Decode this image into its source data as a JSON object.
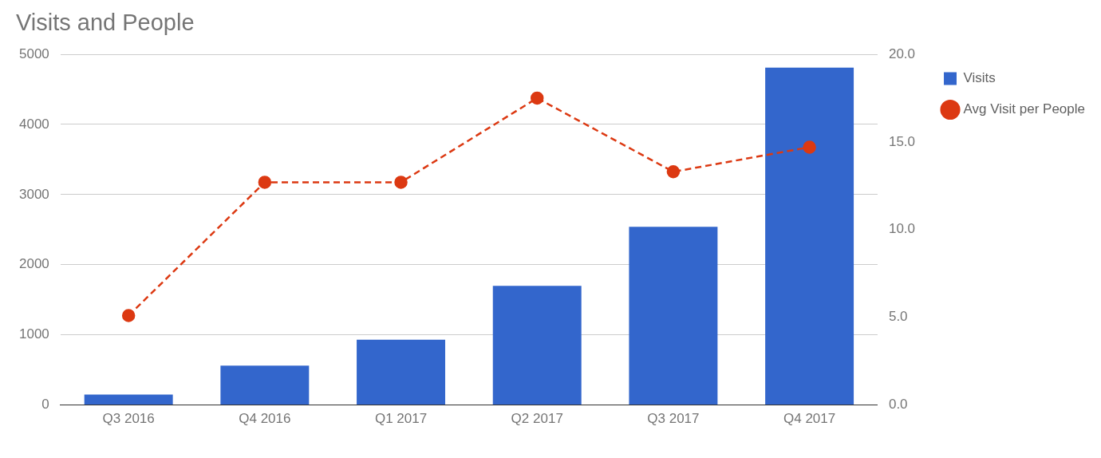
{
  "chart_data": {
    "type": "bar",
    "title": "Visits and People",
    "categories": [
      "Q3 2016",
      "Q4 2016",
      "Q1 2017",
      "Q2 2017",
      "Q3 2017",
      "Q4 2017"
    ],
    "series": [
      {
        "name": "Visits",
        "color": "#3366cc",
        "values": [
          150,
          560,
          930,
          1700,
          2540,
          4810
        ]
      },
      {
        "name": "Avg Visit per People",
        "type": "line",
        "axis": "y2",
        "color": "#dc3912",
        "marker": "circle",
        "line_style": "dashed",
        "values": [
          5.1,
          12.7,
          12.7,
          17.5,
          13.3,
          14.7
        ]
      }
    ],
    "ylim": [
      0,
      5000
    ],
    "yticks": [
      0,
      1000,
      2000,
      3000,
      4000,
      5000
    ],
    "y2lim": [
      0,
      20
    ],
    "y2ticks": [
      {
        "value": 0,
        "label": "0.0"
      },
      {
        "value": 5,
        "label": "5.0"
      },
      {
        "value": 10,
        "label": "10.0"
      },
      {
        "value": 15,
        "label": "15.0"
      },
      {
        "value": 20,
        "label": "20.0"
      }
    ],
    "grid": "y",
    "legend": "top right"
  }
}
